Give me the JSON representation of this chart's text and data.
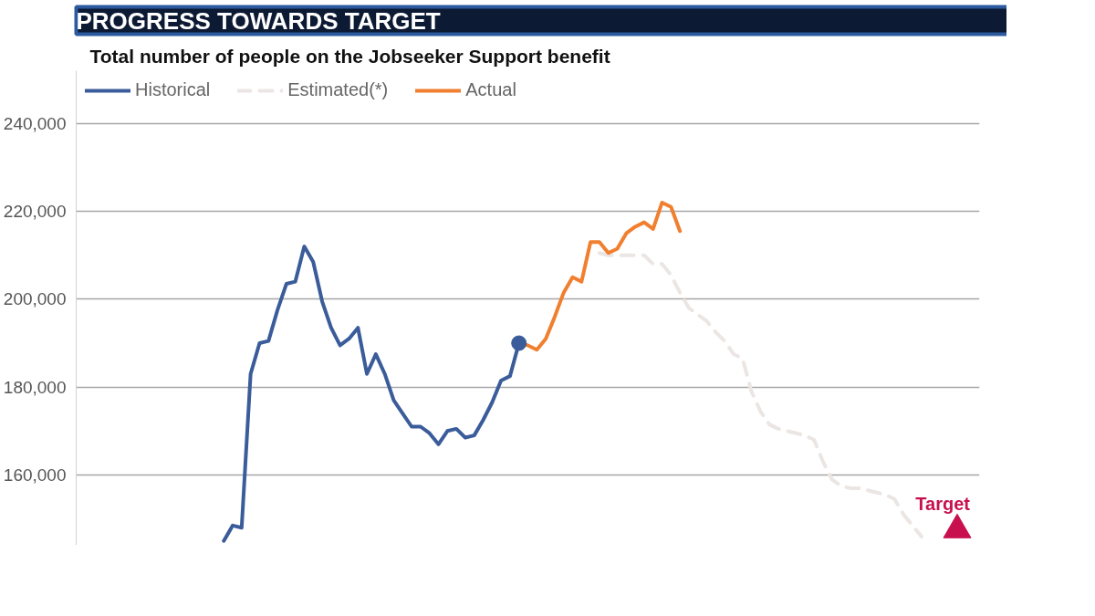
{
  "chart_data": {
    "type": "line",
    "title": "PROGRESS TOWARDS TARGET",
    "subtitle": "Total number of people on the Jobseeker Support benefit",
    "categories": [
      null,
      null,
      null,
      null,
      null,
      null,
      null,
      null,
      null,
      null,
      null,
      null,
      null,
      null,
      null,
      null,
      null,
      null,
      null,
      null,
      null,
      null,
      null,
      null,
      null,
      null,
      null,
      null,
      null,
      null,
      null,
      null,
      null,
      null,
      null,
      null,
      null,
      null,
      null,
      null,
      null,
      null,
      null,
      null,
      null,
      null,
      null,
      null,
      null,
      null,
      null,
      null,
      null,
      null,
      null,
      null,
      null,
      null,
      null,
      null,
      null,
      null,
      null,
      null,
      null,
      null,
      null,
      null,
      null,
      null,
      null,
      null,
      null,
      null,
      null,
      null,
      null,
      null,
      null,
      null,
      null,
      null,
      null,
      null,
      null,
      null,
      null,
      null,
      null,
      null,
      null,
      null,
      null,
      null,
      null,
      null,
      null,
      null,
      null,
      null,
      null
    ],
    "ylim": [
      144000,
      252000
    ],
    "yticks": [
      {
        "value": 160000,
        "label": "160,000"
      },
      {
        "value": 180000,
        "label": "180,000"
      },
      {
        "value": 200000,
        "label": "200,000"
      },
      {
        "value": 220000,
        "label": "220,000"
      },
      {
        "value": 240000,
        "label": "240,000"
      }
    ],
    "grid": "y",
    "legend": "top left",
    "tick_labels": "y",
    "series": [
      {
        "name": "Historical",
        "color": "#3b5c9a",
        "line_style": "solid",
        "values": [
          null,
          null,
          null,
          null,
          null,
          null,
          null,
          null,
          null,
          null,
          null,
          null,
          null,
          null,
          null,
          null,
          145000,
          148500,
          148000,
          183000,
          190000,
          190500,
          197500,
          203500,
          204000,
          212000,
          208500,
          199500,
          193500,
          189500,
          191000,
          193500,
          183000,
          187500,
          183000,
          177000,
          174000,
          171000,
          171000,
          169500,
          167000,
          170000,
          170500,
          168500,
          169000,
          172500,
          176500,
          181500,
          182500,
          190000,
          null,
          null,
          null,
          null,
          null,
          null,
          null,
          null,
          null,
          null,
          null,
          null,
          null,
          null,
          null,
          null,
          null,
          null,
          null,
          null,
          null,
          null,
          null,
          null,
          null,
          null,
          null,
          null,
          null,
          null,
          null,
          null,
          null,
          null,
          null,
          null,
          null,
          null,
          null,
          null,
          null,
          null,
          null,
          null,
          null,
          null,
          null,
          null,
          null,
          null,
          null
        ]
      },
      {
        "name": "Estimated(*)",
        "color": "#ebe6e3",
        "line_style": "dashed",
        "values": [
          null,
          null,
          null,
          null,
          null,
          null,
          null,
          null,
          null,
          null,
          null,
          null,
          null,
          null,
          null,
          null,
          null,
          null,
          null,
          null,
          null,
          null,
          null,
          null,
          null,
          null,
          null,
          null,
          null,
          null,
          null,
          null,
          null,
          null,
          null,
          null,
          null,
          null,
          null,
          null,
          null,
          null,
          null,
          null,
          null,
          null,
          null,
          null,
          null,
          null,
          null,
          null,
          null,
          null,
          null,
          null,
          null,
          null,
          210500,
          210000,
          210000,
          210000,
          210000,
          210000,
          208000,
          208000,
          205500,
          201500,
          198000,
          196500,
          195000,
          192500,
          190500,
          187500,
          186500,
          179000,
          174500,
          171500,
          170500,
          170000,
          169500,
          169000,
          168000,
          163000,
          159000,
          157500,
          157000,
          157000,
          156500,
          156000,
          155500,
          154500,
          151000,
          148500,
          146000,
          null,
          null,
          null,
          null,
          null,
          null
        ]
      },
      {
        "name": "Actual",
        "color": "#f07f2f",
        "line_style": "solid",
        "values": [
          null,
          null,
          null,
          null,
          null,
          null,
          null,
          null,
          null,
          null,
          null,
          null,
          null,
          null,
          null,
          null,
          null,
          null,
          null,
          null,
          null,
          null,
          null,
          null,
          null,
          null,
          null,
          null,
          null,
          null,
          null,
          null,
          null,
          null,
          null,
          null,
          null,
          null,
          null,
          null,
          null,
          null,
          null,
          null,
          null,
          null,
          null,
          null,
          null,
          190000,
          189500,
          188500,
          191000,
          196000,
          201500,
          205000,
          204000,
          213000,
          213000,
          210500,
          211500,
          215000,
          216500,
          217500,
          216000,
          222000,
          221000,
          215500,
          null,
          null,
          null,
          null,
          null,
          null,
          null,
          null,
          null,
          null,
          null,
          null,
          null,
          null,
          null,
          null,
          null,
          null,
          null,
          null,
          null,
          null,
          null,
          null,
          null,
          null,
          null,
          null,
          null,
          null,
          null,
          null,
          null
        ]
      },
      {
        "type": "scatter",
        "marker": "circle",
        "color": "#3b5c9a",
        "values": [
          null,
          null,
          null,
          null,
          null,
          null,
          null,
          null,
          null,
          null,
          null,
          null,
          null,
          null,
          null,
          null,
          null,
          null,
          null,
          null,
          null,
          null,
          null,
          null,
          null,
          null,
          null,
          null,
          null,
          null,
          null,
          null,
          null,
          null,
          null,
          null,
          null,
          null,
          null,
          null,
          null,
          null,
          null,
          null,
          null,
          null,
          null,
          null,
          null,
          190000,
          null,
          null,
          null,
          null,
          null,
          null,
          null,
          null,
          null,
          null,
          null,
          null,
          null,
          null,
          null,
          null,
          null,
          null,
          null,
          null,
          null,
          null,
          null,
          null,
          null,
          null,
          null,
          null,
          null,
          null,
          null,
          null,
          null,
          null,
          null,
          null,
          null,
          null,
          null,
          null,
          null,
          null,
          null,
          null,
          null,
          null,
          null,
          null,
          null,
          null,
          null
        ]
      },
      {
        "type": "scatter",
        "marker": "triangle",
        "name": "Target",
        "color": "#c8104f",
        "values": [
          null,
          null,
          null,
          null,
          null,
          null,
          null,
          null,
          null,
          null,
          null,
          null,
          null,
          null,
          null,
          null,
          null,
          null,
          null,
          null,
          null,
          null,
          null,
          null,
          null,
          null,
          null,
          null,
          null,
          null,
          null,
          null,
          null,
          null,
          null,
          null,
          null,
          null,
          null,
          null,
          null,
          null,
          null,
          null,
          null,
          null,
          null,
          null,
          null,
          null,
          null,
          null,
          null,
          null,
          null,
          null,
          null,
          null,
          null,
          null,
          null,
          null,
          null,
          null,
          null,
          null,
          null,
          null,
          null,
          null,
          null,
          null,
          null,
          null,
          null,
          null,
          null,
          null,
          null,
          null,
          null,
          null,
          null,
          null,
          null,
          null,
          null,
          null,
          null,
          null,
          null,
          null,
          null,
          null,
          null,
          null,
          null,
          null,
          147500,
          null,
          null
        ]
      }
    ]
  }
}
